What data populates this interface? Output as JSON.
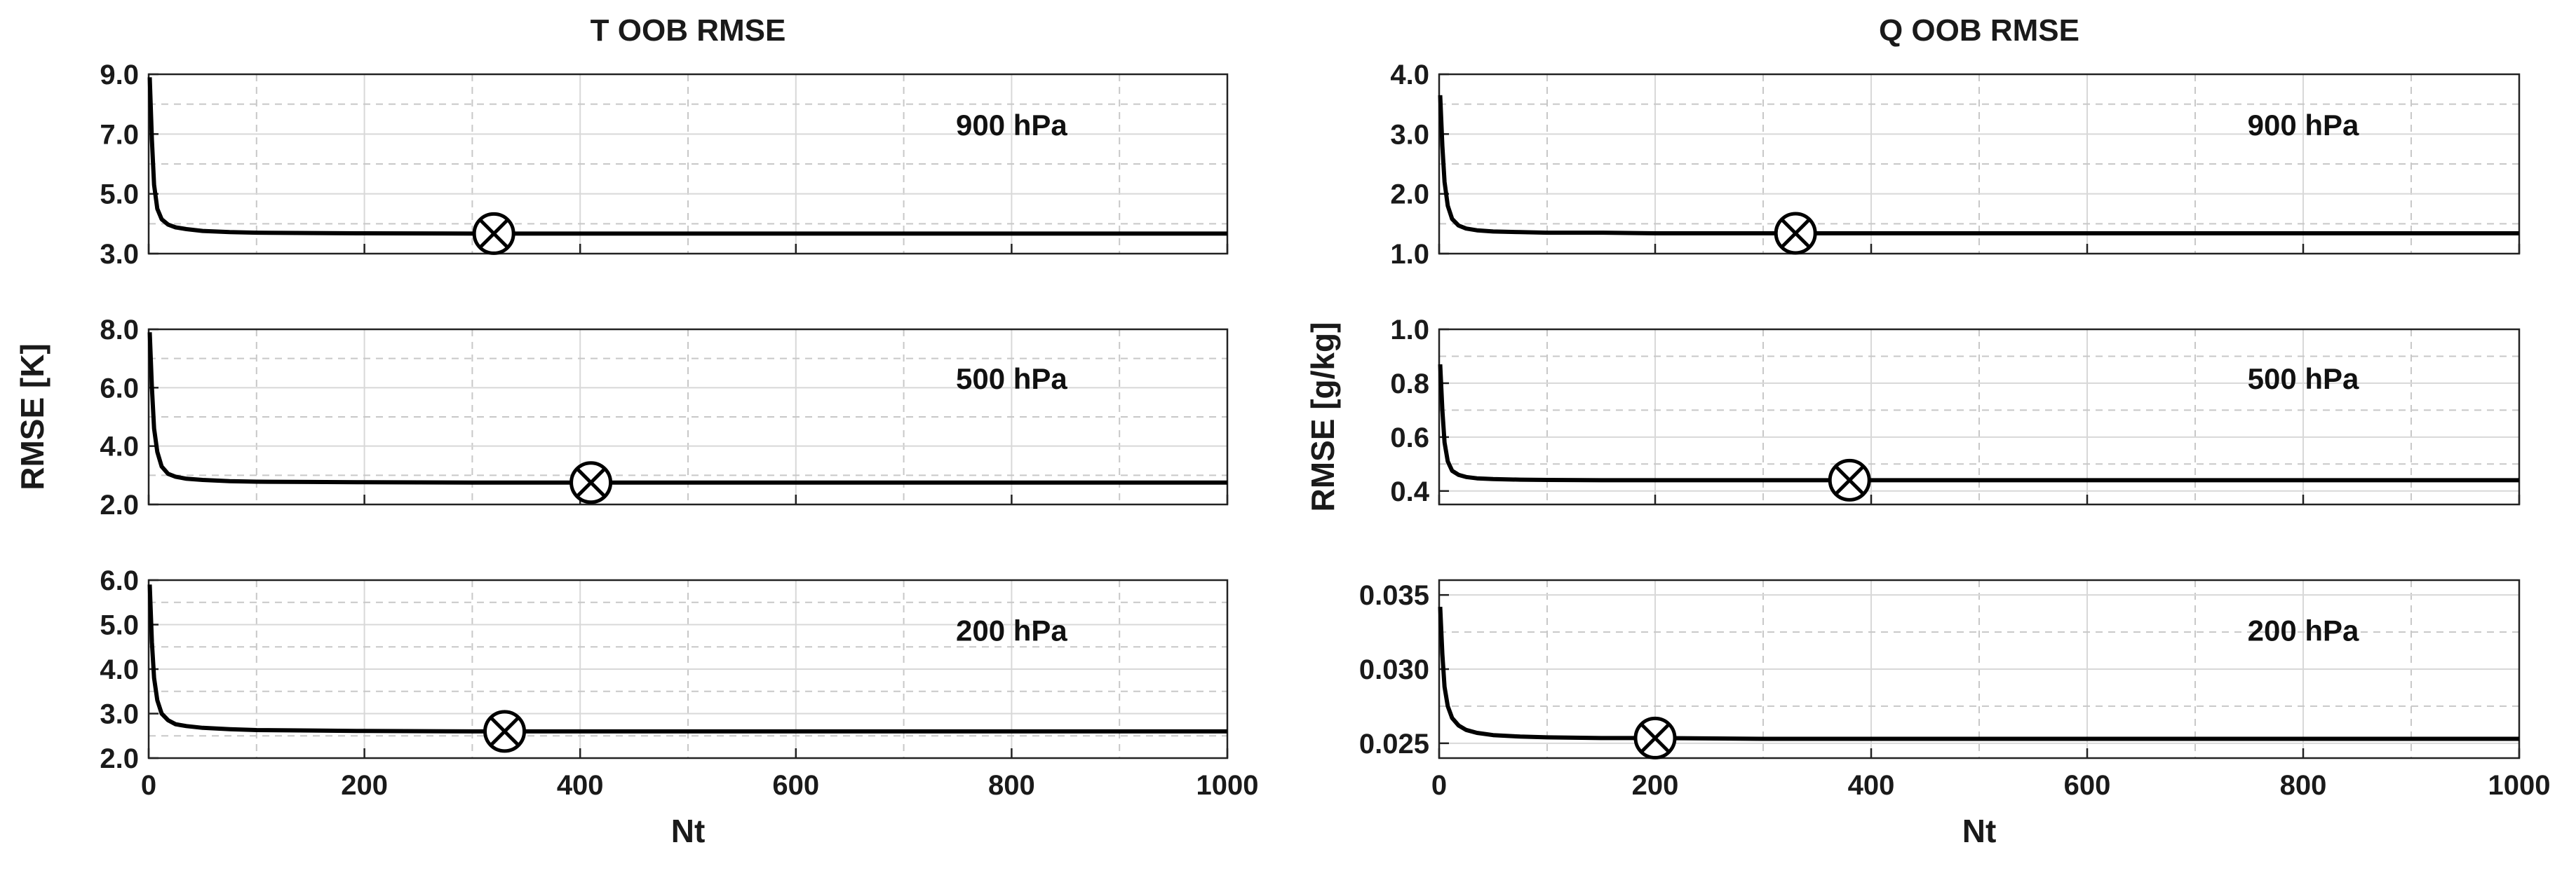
{
  "chart_data": [
    {
      "type": "line",
      "title": "T OOB RMSE",
      "level": "900 hPa",
      "xlim": [
        0,
        1000
      ],
      "ylim": [
        3,
        9
      ],
      "yticks": [
        3,
        5,
        7,
        9
      ],
      "ytick_labels": [
        "3.0",
        "5.0",
        "7.0",
        "9.0"
      ],
      "xticks": [
        0,
        200,
        400,
        600,
        800,
        1000
      ],
      "xtick_labels": [],
      "xlabel": "",
      "ylabel": "",
      "series": [
        {
          "name": "OOB RMSE",
          "x": [
            1,
            3,
            5,
            8,
            12,
            18,
            25,
            35,
            50,
            75,
            100,
            150,
            200,
            300,
            500,
            700,
            1000
          ],
          "values": [
            8.9,
            6.8,
            5.3,
            4.5,
            4.15,
            3.97,
            3.88,
            3.82,
            3.76,
            3.72,
            3.7,
            3.69,
            3.68,
            3.67,
            3.67,
            3.67,
            3.67
          ]
        }
      ],
      "optimum": {
        "x": 320,
        "y": 3.67
      }
    },
    {
      "type": "line",
      "level": "500 hPa",
      "xlim": [
        0,
        1000
      ],
      "ylim": [
        2,
        8
      ],
      "yticks": [
        2,
        4,
        6,
        8
      ],
      "ytick_labels": [
        "2.0",
        "4.0",
        "6.0",
        "8.0"
      ],
      "xticks": [
        0,
        200,
        400,
        600,
        800,
        1000
      ],
      "xtick_labels": [],
      "xlabel": "",
      "ylabel": "RMSE [K]",
      "series": [
        {
          "name": "OOB RMSE",
          "x": [
            1,
            3,
            5,
            8,
            12,
            18,
            25,
            35,
            50,
            75,
            100,
            150,
            200,
            300,
            500,
            700,
            1000
          ],
          "values": [
            7.9,
            6.0,
            4.6,
            3.8,
            3.3,
            3.05,
            2.95,
            2.88,
            2.84,
            2.8,
            2.78,
            2.77,
            2.76,
            2.75,
            2.75,
            2.75,
            2.75
          ]
        }
      ],
      "optimum": {
        "x": 410,
        "y": 2.75
      }
    },
    {
      "type": "line",
      "level": "200 hPa",
      "xlim": [
        0,
        1000
      ],
      "ylim": [
        2,
        6
      ],
      "yticks": [
        2,
        3,
        4,
        5,
        6
      ],
      "ytick_labels": [
        "2.0",
        "3.0",
        "4.0",
        "5.0",
        "6.0"
      ],
      "xticks": [
        0,
        200,
        400,
        600,
        800,
        1000
      ],
      "xtick_labels": [
        "0",
        "200",
        "400",
        "600",
        "800",
        "1000"
      ],
      "xlabel": "Nt",
      "ylabel": "",
      "series": [
        {
          "name": "OOB RMSE",
          "x": [
            1,
            3,
            5,
            8,
            12,
            18,
            25,
            35,
            50,
            75,
            100,
            150,
            200,
            300,
            500,
            700,
            1000
          ],
          "values": [
            5.9,
            4.6,
            3.8,
            3.3,
            3.0,
            2.85,
            2.76,
            2.72,
            2.68,
            2.65,
            2.63,
            2.62,
            2.61,
            2.6,
            2.6,
            2.6,
            2.6
          ]
        }
      ],
      "optimum": {
        "x": 330,
        "y": 2.6
      }
    },
    {
      "type": "line",
      "title": "Q OOB RMSE",
      "level": "900 hPa",
      "xlim": [
        0,
        1000
      ],
      "ylim": [
        1,
        4
      ],
      "yticks": [
        1,
        2,
        3,
        4
      ],
      "ytick_labels": [
        "1.0",
        "2.0",
        "3.0",
        "4.0"
      ],
      "xticks": [
        0,
        200,
        400,
        600,
        800,
        1000
      ],
      "xtick_labels": [],
      "xlabel": "",
      "ylabel": "",
      "series": [
        {
          "name": "OOB RMSE",
          "x": [
            1,
            3,
            5,
            8,
            12,
            18,
            25,
            35,
            50,
            75,
            100,
            150,
            200,
            300,
            500,
            700,
            1000
          ],
          "values": [
            3.65,
            2.8,
            2.2,
            1.8,
            1.58,
            1.47,
            1.42,
            1.39,
            1.37,
            1.36,
            1.35,
            1.35,
            1.34,
            1.34,
            1.34,
            1.34,
            1.34
          ]
        }
      ],
      "optimum": {
        "x": 330,
        "y": 1.34
      }
    },
    {
      "type": "line",
      "level": "500 hPa",
      "xlim": [
        0,
        1000
      ],
      "ylim": [
        0.35,
        1.0
      ],
      "yticks": [
        0.4,
        0.6,
        0.8,
        1.0
      ],
      "ytick_labels": [
        "0.4",
        "0.6",
        "0.8",
        "1.0"
      ],
      "xticks": [
        0,
        200,
        400,
        600,
        800,
        1000
      ],
      "xtick_labels": [],
      "xlabel": "",
      "ylabel": "RMSE [g/kg]",
      "series": [
        {
          "name": "OOB RMSE",
          "x": [
            1,
            3,
            5,
            8,
            12,
            18,
            25,
            35,
            50,
            75,
            100,
            150,
            200,
            300,
            500,
            700,
            1000
          ],
          "values": [
            0.87,
            0.7,
            0.58,
            0.51,
            0.475,
            0.46,
            0.452,
            0.447,
            0.444,
            0.442,
            0.441,
            0.44,
            0.44,
            0.44,
            0.44,
            0.44,
            0.44
          ]
        }
      ],
      "optimum": {
        "x": 380,
        "y": 0.44
      }
    },
    {
      "type": "line",
      "level": "200 hPa",
      "xlim": [
        0,
        1000
      ],
      "ylim": [
        0.024,
        0.036
      ],
      "yticks": [
        0.025,
        0.03,
        0.035
      ],
      "ytick_labels": [
        "0.025",
        "0.030",
        "0.035"
      ],
      "xticks": [
        0,
        200,
        400,
        600,
        800,
        1000
      ],
      "xtick_labels": [
        "0",
        "200",
        "400",
        "600",
        "800",
        "1000"
      ],
      "xlabel": "Nt",
      "ylabel": "",
      "series": [
        {
          "name": "OOB RMSE",
          "x": [
            1,
            3,
            5,
            8,
            12,
            18,
            25,
            35,
            50,
            75,
            100,
            150,
            200,
            300,
            500,
            700,
            1000
          ],
          "values": [
            0.0342,
            0.031,
            0.0288,
            0.0275,
            0.0267,
            0.0262,
            0.0259,
            0.0257,
            0.02555,
            0.02545,
            0.0254,
            0.02535,
            0.02535,
            0.0253,
            0.0253,
            0.0253,
            0.0253
          ]
        }
      ],
      "optimum": {
        "x": 200,
        "y": 0.02535
      }
    }
  ]
}
